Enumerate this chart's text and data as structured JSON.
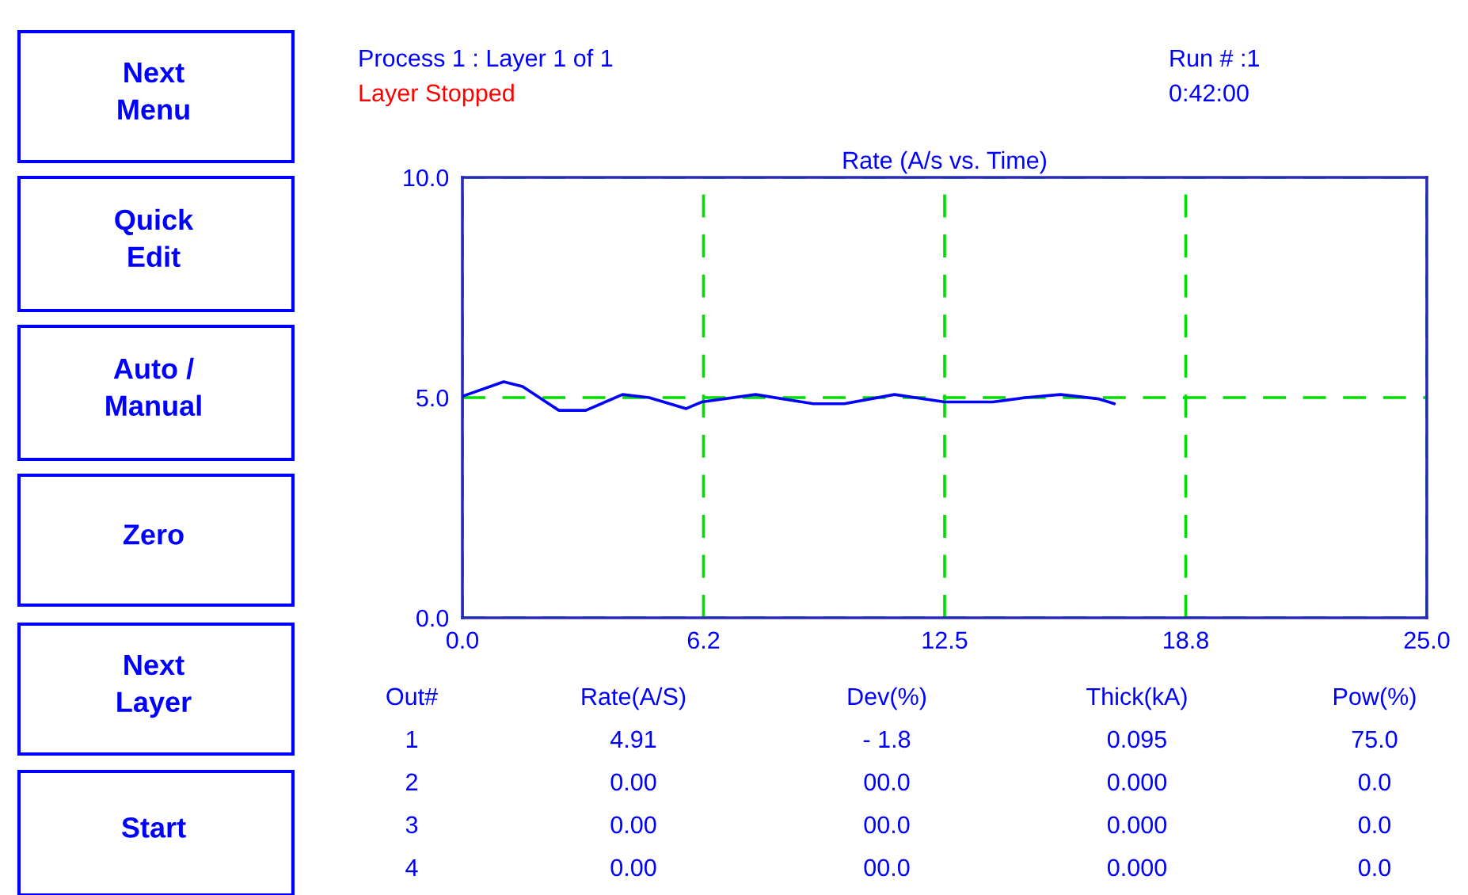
{
  "chart_data": {
    "type": "line",
    "title": "Rate (A/s vs. Time)",
    "x": [
      0,
      1.07,
      1.56,
      2.5,
      3.2,
      4.15,
      4.84,
      5.8,
      6.2,
      7.6,
      9.1,
      9.9,
      11.2,
      12.5,
      13.75,
      14.6,
      15.5,
      16.5,
      16.9
    ],
    "series": [
      {
        "color": "#0000ff",
        "values": [
          5.03,
          5.36,
          5.25,
          4.71,
          4.71,
          5.07,
          5.0,
          4.75,
          4.9,
          5.07,
          4.86,
          4.86,
          5.07,
          4.9,
          4.9,
          5.0,
          5.07,
          4.97,
          4.86
        ]
      }
    ],
    "xlim": [
      0,
      25
    ],
    "xticks": [
      {
        "value": 0,
        "label": "0.0"
      },
      {
        "value": 6.25,
        "label": "6.2"
      },
      {
        "value": 12.5,
        "label": "12.5"
      },
      {
        "value": 18.75,
        "label": "18.8"
      },
      {
        "value": 25,
        "label": "25.0"
      }
    ],
    "ylim": [
      0,
      10
    ],
    "yticks": [
      {
        "value": 0,
        "label": "0.0"
      },
      {
        "value": 5,
        "label": "5.0"
      },
      {
        "value": 10,
        "label": "10.0"
      }
    ],
    "grid": true,
    "legend": false,
    "marker": "none",
    "line_style": "solid",
    "annotations": [
      "Next\nMenu",
      "Quick\nEdit",
      "Auto /\nManual",
      "Zero",
      "Next\nLayer",
      "Start",
      "Process 1 : Layer 1 of 1",
      "Layer Stopped",
      "Run # :1",
      "0:42:00",
      "Out#",
      "Rate(A/S)",
      "Dev(%)",
      "Thick(kA)",
      "Pow(%)",
      "1",
      "4.91",
      "- 1.8",
      "0.095",
      "75.0",
      "2",
      "0.00",
      "00.0",
      "0.000",
      "0.0",
      "3",
      "0.00",
      "00.0",
      "0.000",
      "0.0",
      "4",
      "0.00",
      "00.0",
      "0.000",
      "0.0"
    ]
  }
}
